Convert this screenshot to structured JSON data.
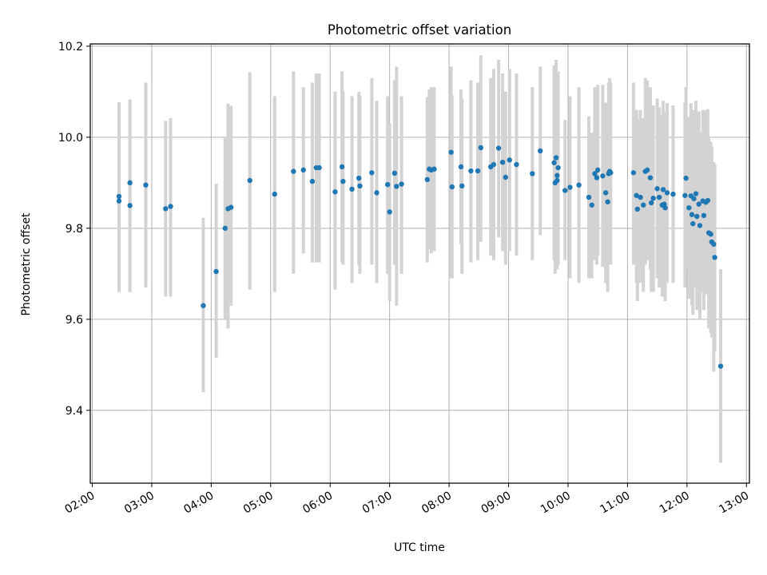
{
  "chart_data": {
    "type": "scatter",
    "title": "Photometric offset variation",
    "xlabel": "UTC time",
    "ylabel": "Photometric offset",
    "xlim": [
      "01:58",
      "13:03"
    ],
    "ylim": [
      9.24,
      10.205
    ],
    "x_ticks": [
      "02:00",
      "03:00",
      "04:00",
      "05:00",
      "06:00",
      "07:00",
      "08:00",
      "09:00",
      "10:00",
      "11:00",
      "12:00",
      "13:00"
    ],
    "y_ticks": [
      9.4,
      9.6,
      9.8,
      10.0,
      10.2
    ],
    "y_tick_labels": [
      "9.4",
      "9.6",
      "9.8",
      "10.0",
      "10.2"
    ],
    "grid": true,
    "colors": {
      "marker": "#1f77b4",
      "errorbar": "#d3d3d3",
      "grid": "#b0b0b0"
    },
    "series": [
      {
        "x": [
          "02:27",
          "02:27",
          "02:38",
          "02:38",
          "02:54",
          "03:14",
          "03:19",
          "03:52",
          "04:05",
          "04:14",
          "04:17",
          "04:20",
          "04:39",
          "05:04",
          "05:23",
          "05:33",
          "05:42",
          "05:46",
          "05:49",
          "06:05",
          "06:12",
          "06:13",
          "06:22",
          "06:29",
          "06:30",
          "06:42",
          "06:47",
          "06:58",
          "07:00",
          "07:05",
          "07:07",
          "07:12",
          "07:38",
          "07:40",
          "07:42",
          "07:45",
          "08:02",
          "08:03",
          "08:12",
          "08:13",
          "08:22",
          "08:29",
          "08:32",
          "08:42",
          "08:45",
          "08:50",
          "08:54",
          "08:57",
          "09:01",
          "09:08",
          "09:24",
          "09:32",
          "09:47",
          "09:46",
          "09:48",
          "09:49",
          "09:49",
          "09:50",
          "09:57",
          "10:02",
          "10:11",
          "10:21",
          "10:24",
          "10:27",
          "10:29",
          "10:30",
          "10:35",
          "10:38",
          "10:40",
          "10:41",
          "10:42",
          "10:43",
          "11:06",
          "11:09",
          "11:10",
          "11:13",
          "11:16",
          "11:18",
          "11:20",
          "11:23",
          "11:24",
          "11:26",
          "11:30",
          "11:32",
          "11:35",
          "11:36",
          "11:37",
          "11:38",
          "11:40",
          "11:46",
          "11:58",
          "11:59",
          "12:02",
          "12:04",
          "12:05",
          "12:06",
          "12:07",
          "12:09",
          "12:10",
          "12:12",
          "12:13",
          "12:16",
          "12:17",
          "12:19",
          "12:21",
          "12:22",
          "12:24",
          "12:25",
          "12:27",
          "12:28",
          "12:34"
        ],
        "y": [
          9.87,
          9.86,
          9.9,
          9.85,
          9.895,
          9.843,
          9.848,
          9.63,
          9.705,
          9.8,
          9.843,
          9.846,
          9.905,
          9.875,
          9.925,
          9.928,
          9.903,
          9.933,
          9.933,
          9.88,
          9.935,
          9.903,
          9.886,
          9.91,
          9.893,
          9.922,
          9.878,
          9.896,
          9.836,
          9.921,
          9.892,
          9.897,
          9.907,
          9.93,
          9.928,
          9.93,
          9.967,
          9.891,
          9.935,
          9.893,
          9.926,
          9.926,
          9.977,
          9.935,
          9.94,
          9.976,
          9.945,
          9.912,
          9.95,
          9.94,
          9.92,
          9.97,
          9.9,
          9.944,
          9.955,
          9.905,
          9.916,
          9.933,
          9.883,
          9.89,
          9.895,
          9.868,
          9.851,
          9.92,
          9.911,
          9.928,
          9.915,
          9.878,
          9.858,
          9.92,
          9.925,
          9.922,
          9.922,
          9.872,
          9.842,
          9.868,
          9.851,
          9.925,
          9.928,
          9.911,
          9.856,
          9.866,
          9.887,
          9.868,
          9.851,
          9.885,
          9.853,
          9.845,
          9.878,
          9.875,
          9.872,
          9.91,
          9.845,
          9.871,
          9.83,
          9.81,
          9.865,
          9.876,
          9.826,
          9.853,
          9.806,
          9.86,
          9.828,
          9.857,
          9.861,
          9.79,
          9.787,
          9.77,
          9.765,
          9.736,
          9.497
        ],
        "err_low": [
          9.66,
          9.66,
          9.66,
          9.66,
          9.67,
          9.65,
          9.65,
          9.44,
          9.515,
          9.6,
          9.58,
          9.63,
          9.665,
          9.66,
          9.7,
          9.745,
          9.725,
          9.725,
          9.725,
          9.665,
          9.725,
          9.72,
          9.68,
          9.72,
          9.7,
          9.72,
          9.68,
          9.7,
          9.64,
          9.72,
          9.63,
          9.7,
          9.725,
          9.755,
          9.745,
          9.75,
          9.69,
          9.69,
          9.765,
          9.7,
          9.725,
          9.73,
          9.77,
          9.74,
          9.73,
          9.78,
          9.75,
          9.72,
          9.75,
          9.74,
          9.73,
          9.785,
          9.7,
          9.73,
          9.74,
          9.71,
          9.72,
          9.72,
          9.73,
          9.69,
          9.68,
          9.69,
          9.69,
          9.73,
          9.72,
          9.74,
          9.715,
          9.68,
          9.66,
          9.72,
          9.72,
          9.72,
          9.72,
          9.68,
          9.64,
          9.68,
          9.66,
          9.72,
          9.73,
          9.71,
          9.66,
          9.66,
          9.69,
          9.67,
          9.65,
          9.69,
          9.65,
          9.64,
          9.68,
          9.68,
          9.67,
          9.71,
          9.645,
          9.665,
          9.63,
          9.61,
          9.67,
          9.67,
          9.62,
          9.65,
          9.6,
          9.66,
          9.62,
          9.655,
          9.66,
          9.58,
          9.57,
          9.56,
          9.485,
          9.53,
          9.285
        ],
        "err_high": [
          10.077,
          10.077,
          10.045,
          10.083,
          10.12,
          10.036,
          10.042,
          9.823,
          9.898,
          10.0,
          10.074,
          10.069,
          10.143,
          10.09,
          10.145,
          10.11,
          10.12,
          10.14,
          10.14,
          10.1,
          10.145,
          10.1,
          10.09,
          10.1,
          10.09,
          10.13,
          10.08,
          10.09,
          10.03,
          10.125,
          10.155,
          10.09,
          10.088,
          10.105,
          10.11,
          10.11,
          10.155,
          10.092,
          10.105,
          10.085,
          10.125,
          10.12,
          10.18,
          10.13,
          10.15,
          10.17,
          10.14,
          10.1,
          10.15,
          10.14,
          10.11,
          10.155,
          10.1,
          10.158,
          10.17,
          10.1,
          10.11,
          10.145,
          10.038,
          10.09,
          10.11,
          10.046,
          10.01,
          10.11,
          10.1,
          10.115,
          10.115,
          10.076,
          10.06,
          10.12,
          10.13,
          10.12,
          10.12,
          10.06,
          10.04,
          10.06,
          10.042,
          10.13,
          10.125,
          10.11,
          10.05,
          10.07,
          10.085,
          10.066,
          10.05,
          10.08,
          10.055,
          10.05,
          10.075,
          10.07,
          10.076,
          10.11,
          10.045,
          10.075,
          10.03,
          10.01,
          10.06,
          10.08,
          10.03,
          10.057,
          10.01,
          10.06,
          10.034,
          10.059,
          10.062,
          10.0,
          9.99,
          9.98,
          9.945,
          9.94,
          9.71
        ]
      }
    ]
  }
}
